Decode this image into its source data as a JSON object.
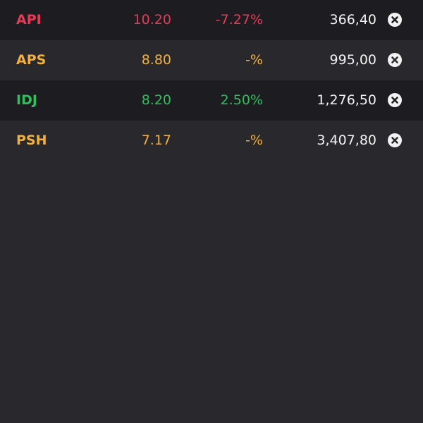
{
  "colors": {
    "down": "#e63a57",
    "flat": "#f2b13f",
    "up": "#2fbf5c",
    "row_dark": "#1d1d21",
    "row_light": "#28282d",
    "text": "#f2f2f2"
  },
  "rows": [
    {
      "symbol": "API",
      "price": "10.20",
      "change": "-7.27%",
      "volume": "366,40",
      "trend": "down",
      "remove_icon": "close-circle-icon"
    },
    {
      "symbol": "APS",
      "price": "8.80",
      "change": "-%",
      "volume": "995,00",
      "trend": "flat",
      "remove_icon": "close-circle-icon"
    },
    {
      "symbol": "IDJ",
      "price": "8.20",
      "change": "2.50%",
      "volume": "1,276,50",
      "trend": "up",
      "remove_icon": "close-circle-icon"
    },
    {
      "symbol": "PSH",
      "price": "7.17",
      "change": "-%",
      "volume": "3,407,80",
      "trend": "flat",
      "remove_icon": "close-circle-icon"
    }
  ]
}
